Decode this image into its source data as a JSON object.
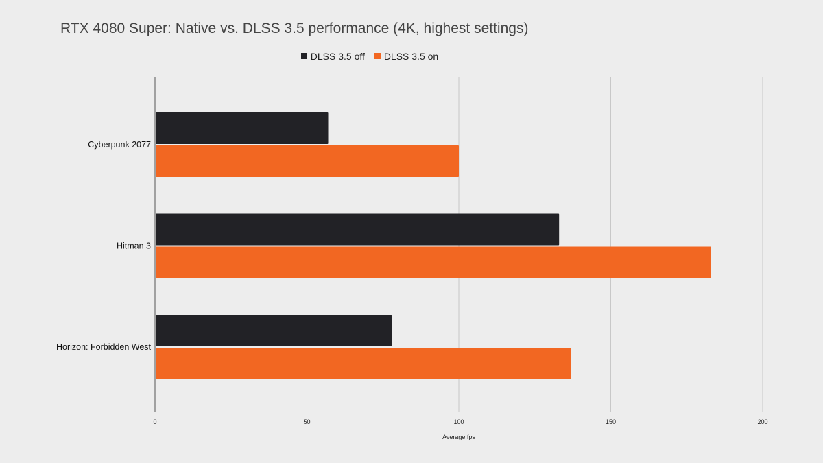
{
  "chart_data": {
    "type": "bar",
    "orientation": "horizontal",
    "title": "RTX 4080 Super: Native vs. DLSS 3.5 performance (4K, highest settings)",
    "xlabel": "Average fps",
    "ylabel": "",
    "categories": [
      "Cyberpunk 2077",
      "Hitman 3",
      "Horizon: Forbidden West"
    ],
    "series": [
      {
        "name": "DLSS 3.5 off",
        "color": "#222226",
        "values": [
          57,
          133,
          78
        ]
      },
      {
        "name": "DLSS 3.5 on",
        "color": "#f26722",
        "values": [
          100,
          183,
          137
        ]
      }
    ],
    "xlim": [
      0,
      200
    ],
    "xticks": [
      0,
      50,
      100,
      150,
      200
    ],
    "grid": true,
    "legend": "top-center"
  }
}
